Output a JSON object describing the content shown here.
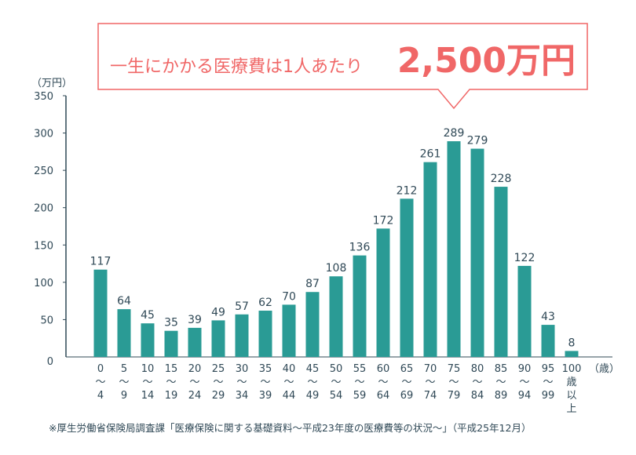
{
  "callout": {
    "text": "一生にかかる医療費は1人あたり",
    "amount": "2,500万円"
  },
  "footnote": "※厚生労働省保険局調査課「医療保険に関する基礎資料～平成23年度の医療費等の状況～」（平成25年12月）",
  "colors": {
    "bar": "#2a9b95",
    "accent": "#f06767",
    "text": "#2f4856"
  },
  "chart_data": {
    "type": "bar",
    "title": "一生にかかる医療費は1人あたり2,500万円",
    "ylabel": "（万円）",
    "xlabel": "（歳）",
    "ylim": [
      0,
      350
    ],
    "yticks": [
      0,
      50,
      100,
      150,
      200,
      250,
      300,
      350
    ],
    "categories": [
      [
        "0",
        "～",
        "4"
      ],
      [
        "5",
        "～",
        "9"
      ],
      [
        "10",
        "～",
        "14"
      ],
      [
        "15",
        "～",
        "19"
      ],
      [
        "20",
        "～",
        "24"
      ],
      [
        "25",
        "～",
        "29"
      ],
      [
        "30",
        "～",
        "34"
      ],
      [
        "35",
        "～",
        "39"
      ],
      [
        "40",
        "～",
        "44"
      ],
      [
        "45",
        "～",
        "49"
      ],
      [
        "50",
        "～",
        "54"
      ],
      [
        "55",
        "～",
        "59"
      ],
      [
        "60",
        "～",
        "64"
      ],
      [
        "65",
        "～",
        "69"
      ],
      [
        "70",
        "～",
        "74"
      ],
      [
        "75",
        "～",
        "79"
      ],
      [
        "80",
        "～",
        "84"
      ],
      [
        "85",
        "～",
        "89"
      ],
      [
        "90",
        "～",
        "94"
      ],
      [
        "95",
        "～",
        "99"
      ],
      [
        "100",
        "歳",
        "以",
        "上"
      ]
    ],
    "values": [
      117,
      64,
      45,
      35,
      39,
      49,
      57,
      62,
      70,
      87,
      108,
      136,
      172,
      212,
      261,
      289,
      279,
      228,
      122,
      43,
      8
    ]
  }
}
